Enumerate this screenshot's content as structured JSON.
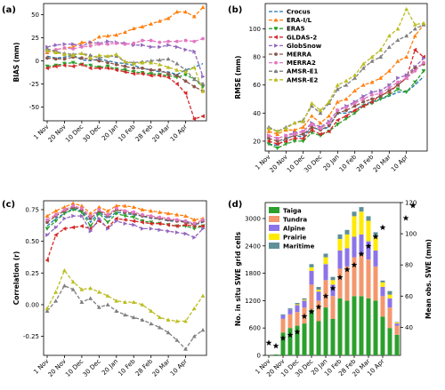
{
  "figure": {
    "x_tick_labels": [
      "1 Nov",
      "20 Nov",
      "10 Dec",
      "30 Dec",
      "20 Jan",
      "10 Feb",
      "28 Feb",
      "20 Mar",
      "10 Apr"
    ],
    "colors": {
      "Crocus": "#1f77b4",
      "ERA-I/L": "#ff7f0e",
      "ERA5": "#2ca02c",
      "GLDAS-2": "#d62728",
      "GlobSnow": "#9467bd",
      "MERRA": "#8c564b",
      "MERRA2": "#e377c2",
      "AMSR-E1": "#7f7f7f",
      "AMSR-E2": "#bcbd22",
      "Taiga": "#2ca02c",
      "Tundra": "#f4976c",
      "Alpine": "#8c74e8",
      "Prairie": "#ffea00",
      "Maritime": "#5f8f99"
    },
    "line_markers": {
      "Crocus": "none",
      "ERA-I/L": "^",
      "ERA5": "v",
      "GLDAS-2": "<",
      "GlobSnow": ">",
      "MERRA": "o",
      "MERRA2": "o",
      "AMSR-E1": "^",
      "AMSR-E2": "^"
    }
  },
  "chart_data": [
    {
      "panel": "(a)",
      "type": "line",
      "ylabel": "BIAS (mm)",
      "xlabel": "",
      "ylim": [
        -65,
        62
      ],
      "yticks": [
        -50,
        -25,
        0,
        25,
        50
      ],
      "ytick_labels": [
        "-50",
        "-25",
        "0",
        "25",
        "50"
      ],
      "x_positions": [
        0,
        1,
        2,
        3,
        4,
        5,
        6,
        7,
        8,
        9,
        10,
        11,
        12,
        13,
        14,
        15,
        16,
        17,
        18
      ],
      "series": [
        {
          "name": "Crocus",
          "values": [
            5,
            3,
            4,
            6,
            1,
            0,
            2,
            0,
            -2,
            -3,
            -5,
            -8,
            -10,
            -12,
            -12,
            -15,
            -10,
            -7,
            -3
          ]
        },
        {
          "name": "ERA-I/L",
          "values": [
            9,
            12,
            14,
            15,
            20,
            20,
            26,
            27,
            28,
            31,
            35,
            37,
            40,
            43,
            46,
            53,
            53,
            48,
            58
          ]
        },
        {
          "name": "ERA5",
          "values": [
            -6,
            -5,
            -3,
            -2,
            -4,
            -5,
            -7,
            -6,
            -9,
            -10,
            -12,
            -13,
            -14,
            -15,
            -16,
            -18,
            -15,
            -20,
            -28
          ]
        },
        {
          "name": "GLDAS-2",
          "values": [
            -8,
            -6,
            -5,
            -6,
            -4,
            -8,
            -8,
            -8,
            -10,
            -12,
            -14,
            -14,
            -16,
            -16,
            -18,
            -25,
            -35,
            -63,
            -60
          ]
        },
        {
          "name": "GlobSnow",
          "values": [
            15,
            17,
            18,
            18,
            16,
            20,
            19,
            21,
            20,
            19,
            17,
            17,
            15,
            15,
            17,
            15,
            12,
            10,
            -17
          ]
        },
        {
          "name": "MERRA",
          "values": [
            3,
            2,
            2,
            4,
            3,
            2,
            0,
            -2,
            -4,
            -6,
            -8,
            -8,
            -10,
            -10,
            -14,
            -16,
            -22,
            -28,
            -33
          ]
        },
        {
          "name": "MERRA2",
          "values": [
            10,
            12,
            14,
            13,
            15,
            16,
            18,
            18,
            19,
            18,
            19,
            22,
            22,
            20,
            21,
            21,
            22,
            21,
            24
          ]
        },
        {
          "name": "AMSR-E1",
          "values": [
            13,
            10,
            8,
            7,
            8,
            6,
            3,
            5,
            5,
            -1,
            -2,
            -1,
            0,
            1,
            2,
            -3,
            -10,
            -20,
            -25
          ]
        },
        {
          "name": "AMSR-E2",
          "values": [
            11,
            9,
            7,
            6,
            8,
            3,
            6,
            5,
            7,
            -1,
            -3,
            -2,
            -2,
            -4,
            -7,
            -10,
            -12,
            -7,
            -33
          ]
        }
      ]
    },
    {
      "panel": "(b)",
      "type": "line",
      "ylabel": "RMSE (mm)",
      "xlabel": "",
      "ylim": [
        13,
        118
      ],
      "yticks": [
        20,
        40,
        60,
        80,
        100
      ],
      "ytick_labels": [
        "20",
        "40",
        "60",
        "80",
        "100"
      ],
      "x_positions": [
        0,
        1,
        2,
        3,
        4,
        5,
        6,
        7,
        8,
        9,
        10,
        11,
        12,
        13,
        14,
        15,
        16,
        17,
        18
      ],
      "series": [
        {
          "name": "Crocus",
          "values": [
            18,
            17,
            22,
            24,
            23,
            30,
            28,
            30,
            40,
            40,
            42,
            46,
            48,
            50,
            52,
            55,
            55,
            60,
            66
          ]
        },
        {
          "name": "ERA-I/L",
          "values": [
            27,
            25,
            28,
            28,
            30,
            38,
            33,
            38,
            48,
            50,
            56,
            60,
            62,
            65,
            70,
            77,
            80,
            95,
            103
          ]
        },
        {
          "name": "ERA5",
          "values": [
            18,
            15,
            18,
            20,
            20,
            26,
            24,
            27,
            32,
            36,
            40,
            45,
            47,
            50,
            53,
            57,
            55,
            62,
            70
          ]
        },
        {
          "name": "GLDAS-2",
          "values": [
            20,
            18,
            20,
            22,
            22,
            28,
            25,
            27,
            35,
            38,
            42,
            45,
            48,
            53,
            55,
            60,
            65,
            85,
            80
          ]
        },
        {
          "name": "GlobSnow",
          "values": [
            24,
            22,
            24,
            26,
            27,
            33,
            30,
            34,
            42,
            45,
            48,
            52,
            55,
            56,
            60,
            65,
            67,
            73,
            79
          ]
        },
        {
          "name": "MERRA",
          "values": [
            22,
            20,
            22,
            24,
            25,
            30,
            28,
            31,
            40,
            42,
            45,
            48,
            50,
            52,
            56,
            60,
            65,
            72,
            75
          ]
        },
        {
          "name": "MERRA2",
          "values": [
            24,
            22,
            24,
            25,
            27,
            32,
            29,
            33,
            42,
            44,
            47,
            50,
            53,
            54,
            58,
            62,
            65,
            70,
            76
          ]
        },
        {
          "name": "AMSR-E1",
          "values": [
            30,
            27,
            30,
            33,
            35,
            45,
            40,
            47,
            57,
            60,
            65,
            72,
            77,
            80,
            87,
            92,
            95,
            100,
            103
          ]
        },
        {
          "name": "AMSR-E2",
          "values": [
            29,
            27,
            29,
            33,
            34,
            47,
            42,
            48,
            60,
            63,
            67,
            75,
            80,
            85,
            95,
            100,
            114,
            103,
            104
          ]
        }
      ]
    },
    {
      "panel": "(c)",
      "type": "line",
      "ylabel": "Correlation (r)",
      "xlabel": "",
      "ylim": [
        -0.4,
        0.82
      ],
      "yticks": [
        -0.25,
        0,
        0.25,
        0.5,
        0.75
      ],
      "ytick_labels": [
        "-0.25",
        "0.00",
        "0.25",
        "0.50",
        "0.75"
      ],
      "x_positions": [
        0,
        1,
        2,
        3,
        4,
        5,
        6,
        7,
        8,
        9,
        10,
        11,
        12,
        13,
        14,
        15,
        16,
        17,
        18
      ],
      "series": [
        {
          "name": "Crocus",
          "values": [
            0.62,
            0.68,
            0.72,
            0.76,
            0.74,
            0.65,
            0.73,
            0.68,
            0.73,
            0.72,
            0.71,
            0.7,
            0.68,
            0.68,
            0.66,
            0.66,
            0.66,
            0.63,
            0.65
          ]
        },
        {
          "name": "ERA-I/L",
          "values": [
            0.7,
            0.74,
            0.77,
            0.8,
            0.78,
            0.72,
            0.77,
            0.74,
            0.78,
            0.78,
            0.77,
            0.75,
            0.74,
            0.73,
            0.72,
            0.71,
            0.7,
            0.67,
            0.68
          ]
        },
        {
          "name": "ERA5",
          "values": [
            0.6,
            0.66,
            0.72,
            0.75,
            0.73,
            0.62,
            0.72,
            0.65,
            0.72,
            0.7,
            0.69,
            0.66,
            0.65,
            0.64,
            0.63,
            0.62,
            0.62,
            0.6,
            0.62
          ]
        },
        {
          "name": "GLDAS-2",
          "values": [
            0.35,
            0.55,
            0.6,
            0.61,
            0.62,
            0.6,
            0.66,
            0.61,
            0.68,
            0.67,
            0.66,
            0.65,
            0.64,
            0.64,
            0.63,
            0.62,
            0.63,
            0.62,
            0.62
          ]
        },
        {
          "name": "GlobSnow",
          "values": [
            0.55,
            0.61,
            0.68,
            0.7,
            0.7,
            0.58,
            0.68,
            0.6,
            0.66,
            0.64,
            0.63,
            0.6,
            0.6,
            0.59,
            0.58,
            0.57,
            0.56,
            0.53,
            0.6
          ]
        },
        {
          "name": "MERRA",
          "values": [
            0.65,
            0.7,
            0.74,
            0.77,
            0.75,
            0.68,
            0.74,
            0.7,
            0.75,
            0.73,
            0.72,
            0.7,
            0.69,
            0.68,
            0.67,
            0.66,
            0.65,
            0.63,
            0.66
          ]
        },
        {
          "name": "MERRA2",
          "values": [
            0.67,
            0.71,
            0.75,
            0.78,
            0.76,
            0.7,
            0.75,
            0.71,
            0.76,
            0.74,
            0.73,
            0.71,
            0.7,
            0.69,
            0.68,
            0.67,
            0.66,
            0.64,
            0.67
          ]
        },
        {
          "name": "AMSR-E1",
          "values": [
            -0.05,
            0.03,
            0.15,
            0.12,
            0.02,
            0.05,
            -0.02,
            0.0,
            -0.05,
            -0.08,
            -0.1,
            -0.12,
            -0.15,
            -0.18,
            -0.22,
            -0.28,
            -0.35,
            -0.25,
            -0.2
          ]
        },
        {
          "name": "AMSR-E2",
          "values": [
            -0.03,
            0.1,
            0.27,
            0.18,
            0.12,
            0.13,
            0.1,
            0.07,
            0.03,
            0.02,
            0.02,
            0.0,
            -0.05,
            -0.1,
            -0.12,
            -0.13,
            -0.13,
            -0.03,
            0.07
          ]
        }
      ]
    },
    {
      "panel": "(d)",
      "type": "bar",
      "stacked": true,
      "ylabel": "No. in situ SWE grid cells",
      "y2label": "Mean obs. SWE (mm)",
      "xlabel": "",
      "ylim": [
        0,
        3350
      ],
      "yticks": [
        0,
        600,
        1200,
        1800,
        2400,
        3000
      ],
      "ytick_labels": [
        "0",
        "600",
        "1200",
        "1800",
        "2400",
        "3000"
      ],
      "y2lim": [
        22,
        120
      ],
      "y2ticks": [
        40,
        60,
        80,
        100,
        120
      ],
      "y2tick_labels": [
        "40",
        "60",
        "80",
        "100",
        "120"
      ],
      "x_positions": [
        0,
        1,
        2,
        3,
        4,
        5,
        6,
        7,
        8,
        9,
        10,
        11,
        12,
        13,
        14,
        15,
        16,
        17,
        18
      ],
      "series": [
        {
          "name": "Taiga",
          "values": [
            5,
            20,
            500,
            600,
            650,
            700,
            1000,
            750,
            1050,
            800,
            1250,
            1200,
            1300,
            1300,
            1250,
            1200,
            850,
            600,
            450
          ]
        },
        {
          "name": "Tundra",
          "values": [
            0,
            0,
            300,
            300,
            300,
            350,
            550,
            450,
            600,
            500,
            650,
            750,
            850,
            900,
            850,
            750,
            450,
            450,
            200
          ]
        },
        {
          "name": "Alpine",
          "values": [
            0,
            0,
            80,
            100,
            150,
            150,
            300,
            200,
            350,
            250,
            400,
            400,
            450,
            450,
            400,
            350,
            200,
            200,
            50
          ]
        },
        {
          "name": "Prairie",
          "values": [
            0,
            0,
            0,
            0,
            20,
            20,
            80,
            40,
            150,
            100,
            250,
            300,
            450,
            500,
            450,
            300,
            100,
            80,
            20
          ]
        },
        {
          "name": "Maritime",
          "values": [
            0,
            0,
            20,
            30,
            30,
            30,
            70,
            60,
            80,
            70,
            100,
            100,
            100,
            100,
            100,
            100,
            40,
            80,
            10
          ]
        }
      ],
      "mean_obs_swe": {
        "name": "Mean obs. SWE (mm)",
        "marker": "*",
        "values": [
          30,
          28,
          33,
          35,
          37,
          47,
          50,
          53,
          60,
          65,
          72,
          77,
          80,
          87,
          92,
          98,
          104,
          110,
          118
        ]
      }
    }
  ]
}
